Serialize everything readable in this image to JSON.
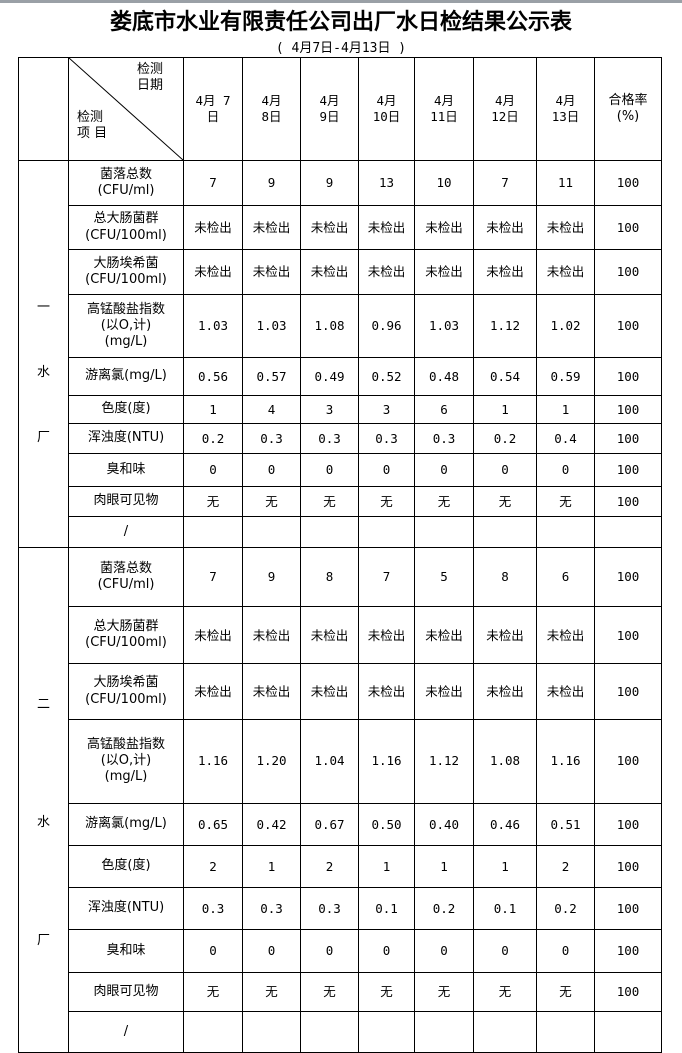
{
  "title": "娄底市水业有限责任公司出厂水日检结果公示表",
  "subtitle": "(   4月7日-4月13日    )",
  "header": {
    "corner_top": [
      "检测",
      "日期"
    ],
    "corner_bottom": [
      "检测",
      "项 目"
    ],
    "dates": [
      [
        "4月 7",
        "日"
      ],
      [
        "4月",
        "8日"
      ],
      [
        "4月",
        "9日"
      ],
      [
        "4月",
        "10日"
      ],
      [
        "4月",
        "11日"
      ],
      [
        "4月",
        "12日"
      ],
      [
        "4月",
        "13日"
      ]
    ],
    "rate": [
      "合格率",
      "(%)"
    ]
  },
  "plants": [
    {
      "name": [
        "一",
        "水",
        "厂"
      ],
      "rows": [
        {
          "item": [
            "菌落总数",
            "(CFU/ml)"
          ],
          "values": [
            "7",
            "9",
            "9",
            "13",
            "10",
            "7",
            "11"
          ],
          "rate": "100"
        },
        {
          "item": [
            "总大肠菌群",
            "(CFU/100ml)"
          ],
          "values": [
            "未检出",
            "未检出",
            "未检出",
            "未检出",
            "未检出",
            "未检出",
            "未检出"
          ],
          "rate": "100"
        },
        {
          "item": [
            "大肠埃希菌",
            "(CFU/100ml)"
          ],
          "values": [
            "未检出",
            "未检出",
            "未检出",
            "未检出",
            "未检出",
            "未检出",
            "未检出"
          ],
          "rate": "100"
        },
        {
          "item": [
            "高锰酸盐指数",
            "(以O,计)",
            "(mg/L)"
          ],
          "values": [
            "1.03",
            "1.03",
            "1.08",
            "0.96",
            "1.03",
            "1.12",
            "1.02"
          ],
          "rate": "100"
        },
        {
          "item": [
            "游离氯(mg/L)"
          ],
          "values": [
            "0.56",
            "0.57",
            "0.49",
            "0.52",
            "0.48",
            "0.54",
            "0.59"
          ],
          "rate": "100"
        },
        {
          "item": [
            "色度(度)"
          ],
          "values": [
            "1",
            "4",
            "3",
            "3",
            "6",
            "1",
            "1"
          ],
          "rate": "100"
        },
        {
          "item": [
            "浑浊度(NTU)"
          ],
          "values": [
            "0.2",
            "0.3",
            "0.3",
            "0.3",
            "0.3",
            "0.2",
            "0.4"
          ],
          "rate": "100"
        },
        {
          "item": [
            "臭和味"
          ],
          "values": [
            "0",
            "0",
            "0",
            "0",
            "0",
            "0",
            "0"
          ],
          "rate": "100"
        },
        {
          "item": [
            "肉眼可见物"
          ],
          "values": [
            "无",
            "无",
            "无",
            "无",
            "无",
            "无",
            "无"
          ],
          "rate": "100"
        },
        {
          "item": [
            "/"
          ],
          "values": [
            "",
            "",
            "",
            "",
            "",
            "",
            ""
          ],
          "rate": ""
        }
      ]
    },
    {
      "name": [
        "二",
        "水",
        "厂"
      ],
      "rows": [
        {
          "item": [
            "菌落总数",
            "(CFU/ml)"
          ],
          "values": [
            "7",
            "9",
            "8",
            "7",
            "5",
            "8",
            "6"
          ],
          "rate": "100"
        },
        {
          "item": [
            "总大肠菌群",
            "(CFU/100ml)"
          ],
          "values": [
            "未检出",
            "未检出",
            "未检出",
            "未检出",
            "未检出",
            "未检出",
            "未检出"
          ],
          "rate": "100"
        },
        {
          "item": [
            "大肠埃希菌",
            "(CFU/100ml)"
          ],
          "values": [
            "未检出",
            "未检出",
            "未检出",
            "未检出",
            "未检出",
            "未检出",
            "未检出"
          ],
          "rate": "100"
        },
        {
          "item": [
            "高锰酸盐指数",
            "(以O,计)",
            "(mg/L)"
          ],
          "values": [
            "1.16",
            "1.20",
            "1.04",
            "1.16",
            "1.12",
            "1.08",
            "1.16"
          ],
          "rate": "100"
        },
        {
          "item": [
            "游离氯(mg/L)"
          ],
          "values": [
            "0.65",
            "0.42",
            "0.67",
            "0.50",
            "0.40",
            "0.46",
            "0.51"
          ],
          "rate": "100"
        },
        {
          "item": [
            "色度(度)"
          ],
          "values": [
            "2",
            "1",
            "2",
            "1",
            "1",
            "1",
            "2"
          ],
          "rate": "100"
        },
        {
          "item": [
            "浑浊度(NTU)"
          ],
          "values": [
            "0.3",
            "0.3",
            "0.3",
            "0.1",
            "0.2",
            "0.1",
            "0.2"
          ],
          "rate": "100"
        },
        {
          "item": [
            "臭和味"
          ],
          "values": [
            "0",
            "0",
            "0",
            "0",
            "0",
            "0",
            "0"
          ],
          "rate": "100"
        },
        {
          "item": [
            "肉眼可见物"
          ],
          "values": [
            "无",
            "无",
            "无",
            "无",
            "无",
            "无",
            "无"
          ],
          "rate": "100"
        },
        {
          "item": [
            "/"
          ],
          "values": [
            "",
            "",
            "",
            "",
            "",
            "",
            ""
          ],
          "rate": ""
        }
      ]
    }
  ]
}
